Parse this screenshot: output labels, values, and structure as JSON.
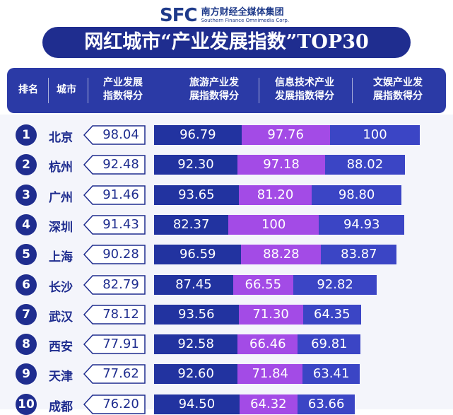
{
  "brand": {
    "mark": "SFC",
    "cn": "南方财经全媒体集团",
    "en": "Southern Finance Omnimedia Corp."
  },
  "title": "网红城市“产业发展指数”TOP30",
  "headers": {
    "rank": "排名",
    "city": "城市",
    "overall": [
      "产业发展",
      "指数得分"
    ],
    "tourism": [
      "旅游产业发",
      "展指数得分"
    ],
    "it": [
      "信息技术产业",
      "发展指数得分"
    ],
    "culture": [
      "文娱产业发",
      "展指数得分"
    ]
  },
  "colors": {
    "navy": "#1f2d8f",
    "tourism": "#2233a0",
    "it": "#a34be6",
    "culture": "#3b45c5",
    "header": "#2b3aa6"
  },
  "chart_data": {
    "type": "bar",
    "stacked": true,
    "categories": [
      "北京",
      "杭州",
      "广州",
      "深圳",
      "上海",
      "长沙",
      "武汉",
      "西安",
      "天津",
      "成都"
    ],
    "ranks": [
      "1",
      "2",
      "3",
      "4",
      "5",
      "6",
      "7",
      "8",
      "9",
      "10"
    ],
    "overall": [
      "98.04",
      "92.48",
      "91.46",
      "91.43",
      "90.28",
      "82.79",
      "78.12",
      "77.91",
      "77.62",
      "76.20"
    ],
    "series": [
      {
        "name": "旅游产业发展指数得分",
        "values": [
          96.79,
          92.3,
          93.65,
          82.37,
          96.59,
          87.45,
          93.56,
          92.58,
          92.6,
          94.5
        ],
        "labels": [
          "96.79",
          "92.30",
          "93.65",
          "82.37",
          "96.59",
          "87.45",
          "93.56",
          "92.58",
          "92.60",
          "94.50"
        ]
      },
      {
        "name": "信息技术产业发展指数得分",
        "values": [
          97.76,
          97.18,
          81.2,
          100,
          88.28,
          66.55,
          71.3,
          66.46,
          71.84,
          64.32
        ],
        "labels": [
          "97.76",
          "97.18",
          "81.20",
          "100",
          "88.28",
          "66.55",
          "71.30",
          "66.46",
          "71.84",
          "64.32"
        ]
      },
      {
        "name": "文娱产业发展指数得分",
        "values": [
          100,
          88.02,
          98.8,
          94.93,
          83.87,
          92.82,
          64.35,
          69.81,
          63.41,
          63.66
        ],
        "labels": [
          "100",
          "88.02",
          "98.80",
          "94.93",
          "83.87",
          "92.82",
          "64.35",
          "69.81",
          "63.41",
          "63.66"
        ]
      }
    ]
  }
}
